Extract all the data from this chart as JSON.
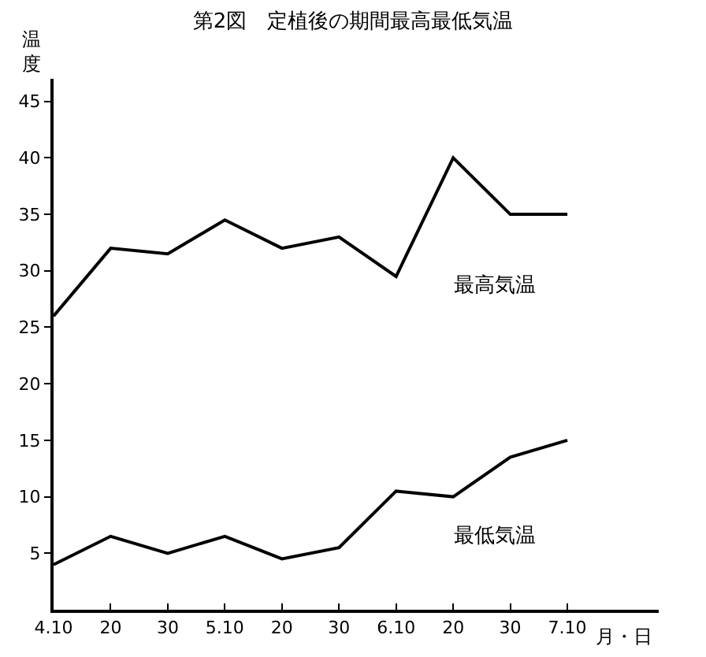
{
  "chart_data": {
    "type": "line",
    "title": "第2図　定植後の期間最高最低気温",
    "xlabel": "月・日",
    "ylabel": "温度",
    "categories": [
      "4.10",
      "20",
      "30",
      "5.10",
      "20",
      "30",
      "6.10",
      "20",
      "30",
      "7.10"
    ],
    "series": [
      {
        "name": "最高気温",
        "color": "#000000",
        "values": [
          26,
          32,
          31.5,
          34.5,
          32,
          33,
          29.5,
          40,
          35,
          35
        ]
      },
      {
        "name": "最低気温",
        "color": "#000000",
        "values": [
          4,
          6.5,
          5,
          6.5,
          4.5,
          5.5,
          10.5,
          10,
          13.5,
          15
        ]
      }
    ],
    "ylim": [
      0,
      47
    ],
    "yticks": [
      5,
      10,
      15,
      20,
      25,
      30,
      35,
      40,
      45
    ],
    "grid": false,
    "legend": false,
    "marker": "none",
    "line_style": "solid"
  }
}
